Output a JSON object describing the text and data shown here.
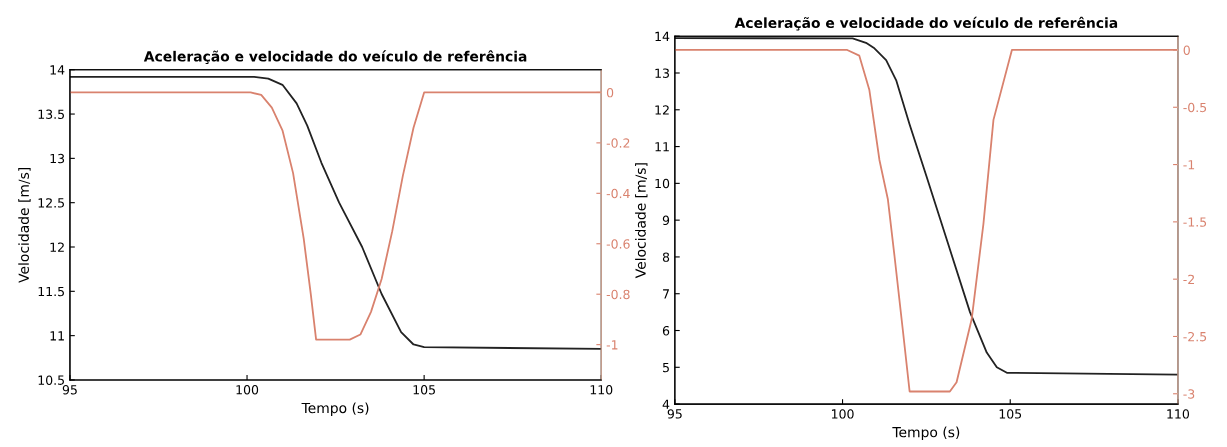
{
  "chart_data": [
    {
      "type": "line",
      "title": "Aceleração e velocidade do veículo de referência",
      "xlabel": "Tempo (s)",
      "ylabel": "Velocidade [m/s]",
      "xlim": [
        95,
        110
      ],
      "xticks": [
        95,
        100,
        105,
        110
      ],
      "ylim": [
        10.5,
        14
      ],
      "yticks": [
        10.5,
        11,
        11.5,
        12,
        12.5,
        13,
        13.5,
        14
      ],
      "y2lim": [
        -1.14,
        0.09
      ],
      "y2ticks": [
        -1,
        -0.8,
        -0.6,
        -0.4,
        -0.2,
        0
      ],
      "grid": false,
      "line_style": "solid",
      "marker": "none",
      "series": [
        {
          "color": "#222222",
          "x": [
            95,
            100.2,
            100.6,
            101.0,
            101.4,
            101.7,
            102.1,
            102.6,
            103.25,
            103.8,
            104.35,
            104.7,
            105.0,
            110
          ],
          "values": [
            13.92,
            13.92,
            13.9,
            13.83,
            13.62,
            13.37,
            12.95,
            12.5,
            12.0,
            11.47,
            11.04,
            10.9,
            10.87,
            10.85
          ]
        },
        {
          "color": "#d9826e",
          "axis": "y2",
          "x": [
            95,
            100.1,
            100.4,
            100.7,
            101.0,
            101.3,
            101.6,
            101.8,
            101.95,
            102.9,
            103.2,
            103.5,
            103.8,
            104.1,
            104.4,
            104.7,
            105.0,
            110
          ],
          "values": [
            0,
            0,
            -0.01,
            -0.06,
            -0.15,
            -0.32,
            -0.58,
            -0.8,
            -0.98,
            -0.98,
            -0.96,
            -0.87,
            -0.74,
            -0.55,
            -0.33,
            -0.14,
            0,
            0
          ]
        }
      ]
    },
    {
      "type": "line",
      "title": "Aceleração e velocidade do veículo de referência",
      "xlabel": "Tempo (s)",
      "ylabel": "Velocidade [m/s]",
      "xlim": [
        95,
        110
      ],
      "xticks": [
        95,
        100,
        105,
        110
      ],
      "ylim": [
        4,
        14
      ],
      "yticks": [
        4,
        5,
        6,
        7,
        8,
        9,
        10,
        11,
        12,
        13,
        14
      ],
      "y2lim": [
        -3.09,
        0.12
      ],
      "y2ticks": [
        -3,
        -2.5,
        -2,
        -1.5,
        -1,
        -0.5,
        0
      ],
      "grid": false,
      "line_style": "solid",
      "marker": "none",
      "series": [
        {
          "color": "#222222",
          "x": [
            95,
            100.3,
            100.7,
            100.95,
            101.3,
            101.6,
            102.0,
            102.5,
            103.15,
            103.8,
            104.3,
            104.6,
            104.9,
            110
          ],
          "values": [
            13.95,
            13.94,
            13.82,
            13.67,
            13.35,
            12.8,
            11.6,
            10.2,
            8.35,
            6.5,
            5.4,
            5.0,
            4.85,
            4.8
          ]
        },
        {
          "color": "#d9826e",
          "axis": "y2",
          "x": [
            95,
            100.14,
            100.5,
            100.8,
            101.1,
            101.35,
            101.55,
            101.8,
            102.0,
            103.2,
            103.4,
            103.85,
            104.2,
            104.5,
            105.05,
            110
          ],
          "values": [
            0,
            0,
            -0.05,
            -0.35,
            -0.96,
            -1.3,
            -1.8,
            -2.45,
            -2.98,
            -2.98,
            -2.9,
            -2.35,
            -1.52,
            -0.61,
            0,
            0
          ]
        }
      ]
    }
  ]
}
